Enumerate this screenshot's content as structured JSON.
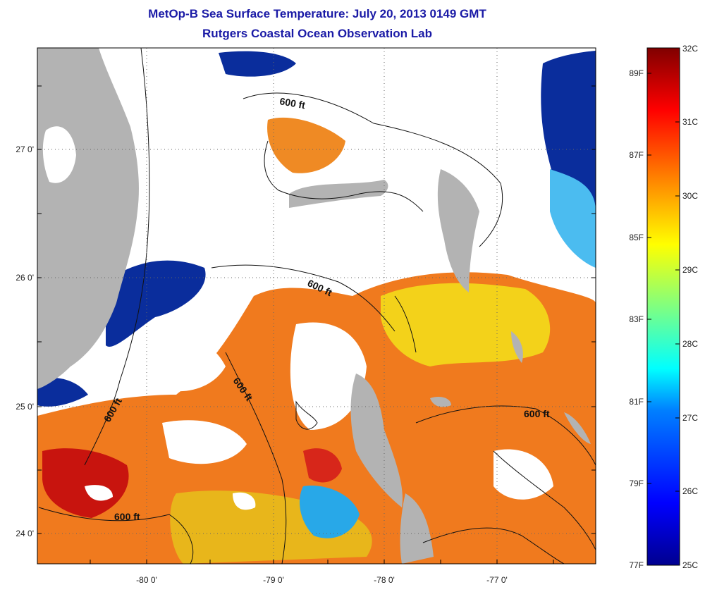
{
  "title": {
    "line1": "MetOp-B Sea Surface Temperature:  July 20, 2013 0149 GMT",
    "line2": "Rutgers Coastal Ocean Observation Lab"
  },
  "axes": {
    "longitude_labels": [
      "-80 0'",
      "-79 0'",
      "-78 0'",
      "-77 0'"
    ],
    "latitude_labels": [
      "27 0'",
      "26 0'",
      "25 0'",
      "24 0'"
    ]
  },
  "contour_labels": [
    "600 ft",
    "600 ft",
    "600 ft",
    "600 ft",
    "600 ft",
    "600 ft"
  ],
  "colorbar": {
    "celsius_labels": [
      "32C",
      "31C",
      "30C",
      "29C",
      "28C",
      "27C",
      "26C",
      "25C"
    ],
    "fahrenheit_labels": [
      "89F",
      "87F",
      "85F",
      "83F",
      "81F",
      "79F",
      "77F"
    ],
    "range_c": [
      25,
      32
    ],
    "colormap": "jet",
    "colors": [
      "#00008f",
      "#0000ff",
      "#0080ff",
      "#00ffff",
      "#80ff80",
      "#ffff00",
      "#ff8000",
      "#ff0000",
      "#800000"
    ]
  },
  "land_color": "#b3b3b3",
  "cloud_color": "#ffffff"
}
